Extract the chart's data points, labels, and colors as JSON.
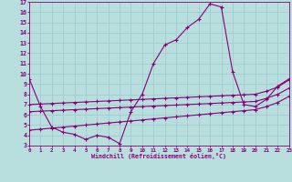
{
  "xlabel": "Windchill (Refroidissement éolien,°C)",
  "xlim": [
    0,
    23
  ],
  "ylim": [
    3,
    17
  ],
  "xticks": [
    0,
    1,
    2,
    3,
    4,
    5,
    6,
    7,
    8,
    9,
    10,
    11,
    12,
    13,
    14,
    15,
    16,
    17,
    18,
    19,
    20,
    21,
    22,
    23
  ],
  "yticks": [
    3,
    4,
    5,
    6,
    7,
    8,
    9,
    10,
    11,
    12,
    13,
    14,
    15,
    16,
    17
  ],
  "bg_color": "#b8dede",
  "line_color": "#880077",
  "grid_color": "#9ecece",
  "line1_x": [
    0,
    1,
    2,
    3,
    4,
    5,
    6,
    7,
    8,
    9,
    10,
    11,
    12,
    13,
    14,
    15,
    16,
    17,
    18,
    19,
    20,
    21,
    22,
    23
  ],
  "line1_y": [
    9.5,
    6.8,
    4.8,
    4.3,
    4.1,
    3.6,
    4.0,
    3.8,
    3.2,
    6.3,
    8.0,
    11.0,
    12.8,
    13.3,
    14.5,
    15.3,
    16.8,
    16.5,
    10.2,
    7.0,
    6.8,
    7.5,
    8.8,
    9.5
  ],
  "line2_x": [
    0,
    1,
    2,
    3,
    4,
    5,
    6,
    7,
    8,
    9,
    10,
    11,
    12,
    13,
    14,
    15,
    16,
    17,
    18,
    19,
    20,
    21,
    22,
    23
  ],
  "line2_y": [
    7.0,
    7.05,
    7.1,
    7.15,
    7.2,
    7.25,
    7.3,
    7.35,
    7.4,
    7.45,
    7.5,
    7.55,
    7.6,
    7.65,
    7.7,
    7.75,
    7.8,
    7.85,
    7.9,
    7.95,
    8.0,
    8.3,
    8.7,
    9.4
  ],
  "line3_x": [
    0,
    1,
    2,
    3,
    4,
    5,
    6,
    7,
    8,
    9,
    10,
    11,
    12,
    13,
    14,
    15,
    16,
    17,
    18,
    19,
    20,
    21,
    22,
    23
  ],
  "line3_y": [
    6.3,
    6.35,
    6.4,
    6.45,
    6.5,
    6.55,
    6.6,
    6.65,
    6.7,
    6.75,
    6.8,
    6.85,
    6.9,
    6.95,
    7.0,
    7.05,
    7.1,
    7.15,
    7.2,
    7.25,
    7.3,
    7.6,
    8.0,
    8.6
  ],
  "line4_x": [
    0,
    1,
    2,
    3,
    4,
    5,
    6,
    7,
    8,
    9,
    10,
    11,
    12,
    13,
    14,
    15,
    16,
    17,
    18,
    19,
    20,
    21,
    22,
    23
  ],
  "line4_y": [
    4.5,
    4.6,
    4.7,
    4.8,
    4.9,
    5.0,
    5.1,
    5.2,
    5.3,
    5.4,
    5.5,
    5.6,
    5.7,
    5.8,
    5.9,
    6.0,
    6.1,
    6.2,
    6.3,
    6.4,
    6.5,
    6.8,
    7.2,
    7.8
  ]
}
